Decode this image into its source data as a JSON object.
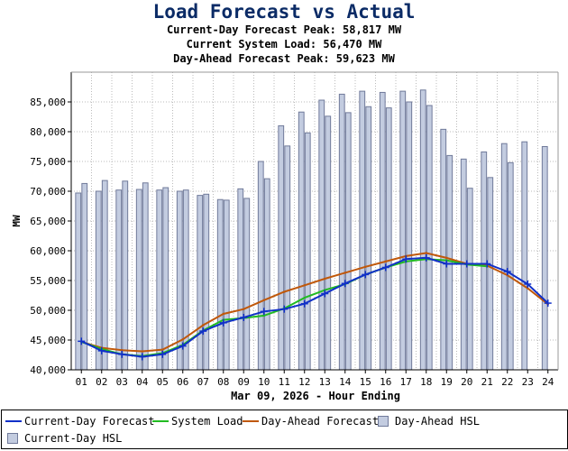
{
  "header": {
    "title": "Load Forecast vs Actual",
    "line1": "Current-Day Forecast Peak:  58,817 MW",
    "line2": "Current System Load:  56,470 MW",
    "line3": "Day-Ahead Forecast Peak:  59,623 MW"
  },
  "colors": {
    "title": "#0b2b66",
    "current_day_forecast": "#1030c8",
    "system_load": "#22bb22",
    "day_ahead_forecast": "#c0580a",
    "hsl_fill": "#c3cce0",
    "hsl_stroke": "#707a9a",
    "plot_bg": "#ffffff",
    "grid": "#bbbbbb"
  },
  "chart_data": {
    "type": "bar",
    "xlabel": "Mar 09, 2026 - Hour Ending",
    "ylabel": "MW",
    "ylim": [
      40000,
      90000
    ],
    "yticks": [
      40000,
      45000,
      50000,
      55000,
      60000,
      65000,
      70000,
      75000,
      80000,
      85000
    ],
    "ytick_labels": [
      "40,000",
      "45,000",
      "50,000",
      "55,000",
      "60,000",
      "65,000",
      "70,000",
      "75,000",
      "80,000",
      "85,000"
    ],
    "grid": true,
    "legend_position": "bottom",
    "categories": [
      "01",
      "02",
      "03",
      "04",
      "05",
      "06",
      "07",
      "08",
      "09",
      "10",
      "11",
      "12",
      "13",
      "14",
      "15",
      "16",
      "17",
      "18",
      "19",
      "20",
      "21",
      "22",
      "23",
      "24"
    ],
    "series": [
      {
        "name": "Day-Ahead HSL",
        "kind": "bar",
        "values": [
          69700,
          70000,
          70200,
          70300,
          70200,
          70000,
          69300,
          68600,
          70400,
          75000,
          81000,
          83300,
          85300,
          86300,
          86800,
          86600,
          86800,
          87000,
          80400,
          75400,
          76600,
          78000,
          78300,
          77500
        ]
      },
      {
        "name": "Current-Day HSL",
        "kind": "bar",
        "values": [
          71300,
          71800,
          71700,
          71400,
          70600,
          70200,
          69500,
          68500,
          68800,
          72100,
          77600,
          79800,
          82600,
          83200,
          84200,
          84000,
          85000,
          84400,
          76000,
          70500,
          72300,
          74800,
          null,
          null
        ]
      },
      {
        "name": "Current-Day Forecast",
        "kind": "line",
        "marker": "+",
        "values": [
          44800,
          43200,
          42600,
          42200,
          42600,
          44000,
          46500,
          47900,
          48800,
          49800,
          50200,
          51100,
          52800,
          54500,
          56000,
          57200,
          58600,
          58817,
          57800,
          57800,
          57800,
          56500,
          54400,
          51200
        ]
      },
      {
        "name": "System Load",
        "kind": "line",
        "values": [
          44700,
          43500,
          42600,
          42300,
          42800,
          44200,
          46600,
          48400,
          48700,
          49100,
          50300,
          52100,
          53400,
          54400,
          56000,
          57200,
          58200,
          58600,
          58400,
          57700,
          57400,
          null,
          null,
          null
        ]
      },
      {
        "name": "Day-Ahead Forecast",
        "kind": "line",
        "values": [
          44700,
          43700,
          43300,
          43100,
          43400,
          45100,
          47500,
          49400,
          50200,
          51700,
          53100,
          54200,
          55300,
          56300,
          57300,
          58200,
          59100,
          59623,
          58800,
          57800,
          57500,
          55900,
          53700,
          51000
        ]
      }
    ]
  }
}
